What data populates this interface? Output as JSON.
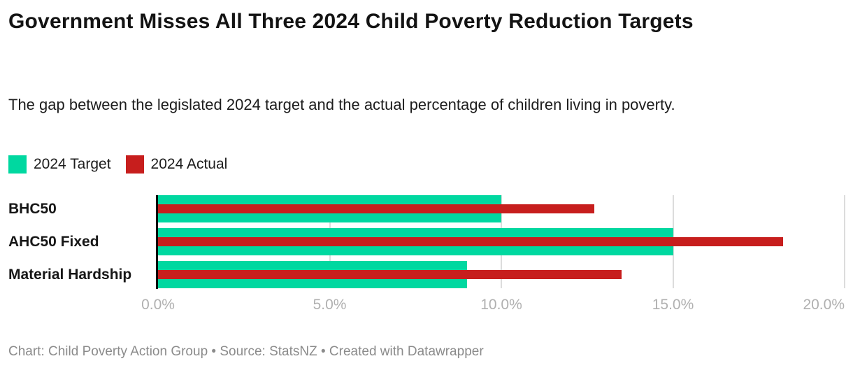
{
  "header": {
    "title": "Government Misses All Three 2024 Child Poverty Reduction Targets",
    "subtitle": "The gap between the legislated 2024 target and the actual percentage of children living in poverty."
  },
  "footer": {
    "text": "Chart: Child Poverty Action Group • Source: StatsNZ • Created with Datawrapper"
  },
  "chart_data": {
    "type": "bar",
    "orientation": "horizontal",
    "title": "Government Misses All Three 2024 Child Poverty Reduction Targets",
    "subtitle": "The gap between the legislated 2024 target and the actual percentage of children living in poverty.",
    "categories": [
      "BHC50",
      "AHC50 Fixed",
      "Material Hardship"
    ],
    "series": [
      {
        "name": "2024 Target",
        "color": "#00d8a0",
        "values": [
          10.0,
          15.0,
          9.0
        ]
      },
      {
        "name": "2024 Actual",
        "color": "#c71e1d",
        "values": [
          12.7,
          18.2,
          13.5
        ]
      }
    ],
    "unit": "%",
    "xlim": [
      0,
      20
    ],
    "x_tick_values": [
      0,
      5,
      10,
      15,
      20
    ],
    "x_ticks": [
      "0.0%",
      "5.0%",
      "10.0%",
      "15.0%",
      "20.0%"
    ],
    "grid": "vertical gridlines at 5% steps, light gray; solid black zero axis",
    "legend_position": "top-left",
    "bar_style": "target bar spans full row height; actual bar is thinner and overlaid centered on target bar",
    "colors": {
      "target_green": "#00d8a0",
      "actual_red": "#c71e1d",
      "gridline": "#dcdcdc",
      "axis_label_gray": "#b0b0b0",
      "footer_gray": "#8b8b8b"
    }
  }
}
